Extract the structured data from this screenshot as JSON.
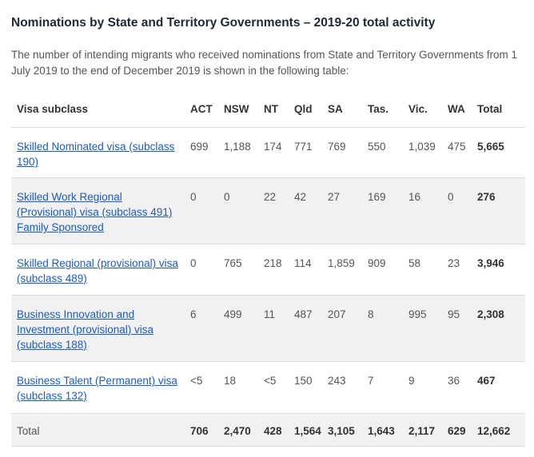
{
  "heading": "Nominations by State and Territory Governments – 2019-20 total activity",
  "intro": "The number of intending migrants who received nominations from State and Territory Governments from 1 July 2019 to the end of December 2019 is shown in the following table:",
  "table": {
    "headers": [
      "Visa subclass",
      "ACT",
      "NSW",
      "NT",
      "Qld",
      "SA",
      "Tas.",
      "Vic.",
      "WA",
      "Total"
    ],
    "rows": [
      {
        "visa": "Skilled Nominated visa (subclass 190)",
        "values": [
          "699",
          "1,188",
          "174",
          "771",
          "769",
          "550",
          "1,039",
          "475"
        ],
        "total": "5,665"
      },
      {
        "visa": "Skilled Work Regional (Provisional) visa (subclass 491) Family Sponsored",
        "values": [
          "0",
          "0",
          "22",
          "42",
          "27",
          "169",
          "16",
          "0"
        ],
        "total": "276"
      },
      {
        "visa": "Skilled Regional (provisional) visa (subclass 489)",
        "values": [
          "0",
          "765",
          "218",
          "114",
          "1,859",
          "909",
          "58",
          "23"
        ],
        "total": "3,946"
      },
      {
        "visa": "Business Innovation and Investment (provisional) visa (subclass 188)",
        "values": [
          "6",
          "499",
          "11",
          "487",
          "207",
          "8",
          "995",
          "95"
        ],
        "total": "2,308"
      },
      {
        "visa": "Business Talent (Permanent) visa (subclass 132)",
        "values": [
          "<5",
          "18",
          "<5",
          "150",
          "243",
          "7",
          "9",
          "36"
        ],
        "total": "467"
      }
    ],
    "footer": {
      "label": "Total",
      "values": [
        "706",
        "2,470",
        "428",
        "1,564",
        "3,105",
        "1,643",
        "2,117",
        "629"
      ],
      "total": "12,662"
    }
  },
  "colors": {
    "link": "#1a5bc4",
    "heading": "#1d2838",
    "stripe": "#f1f1f1",
    "border": "#dcdcdc"
  }
}
